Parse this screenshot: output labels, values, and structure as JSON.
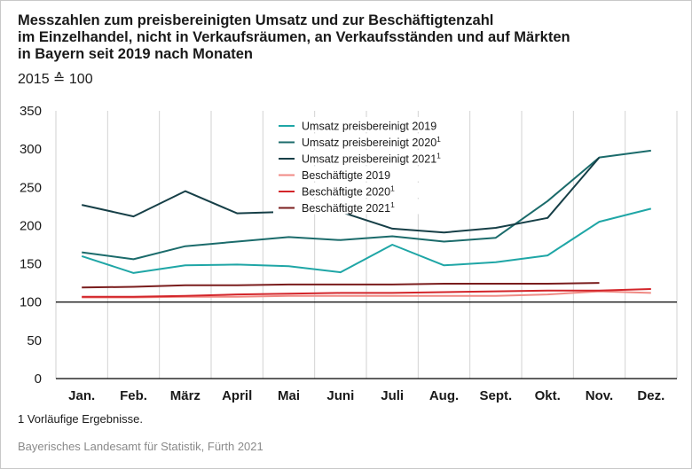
{
  "title_lines": [
    "Messzahlen zum preisbereinigten Umsatz und zur Beschäftigtenzahl",
    "im Einzelhandel, nicht in Verkaufsräumen, an Verkaufsständen und auf Märkten",
    "in Bayern seit 2019 nach Monaten"
  ],
  "subtitle": "2015 ≙ 100",
  "footnote": "1  Vorläufige Ergebnisse.",
  "source": "Bayerisches Landesamt für Statistik, Fürth 2021",
  "chart_data": {
    "type": "line",
    "categories": [
      "Jan.",
      "Feb.",
      "März",
      "April",
      "Mai",
      "Juni",
      "Juli",
      "Aug.",
      "Sept.",
      "Okt.",
      "Nov.",
      "Dez."
    ],
    "ylim": [
      0,
      350
    ],
    "yticks": [
      0,
      50,
      100,
      150,
      200,
      250,
      300,
      350
    ],
    "grid": "vertical",
    "legend_position": "top-center",
    "series": [
      {
        "name": "Umsatz preisbereinigt 2019",
        "sup": "",
        "color": "#1fa6a6",
        "values": [
          160,
          138,
          148,
          149,
          147,
          139,
          175,
          148,
          152,
          161,
          205,
          222
        ]
      },
      {
        "name": "Umsatz preisbereinigt 2020",
        "sup": "1",
        "color": "#1b6b6b",
        "values": [
          165,
          156,
          173,
          179,
          185,
          181,
          186,
          179,
          184,
          232,
          289,
          298
        ]
      },
      {
        "name": "Umsatz preisbereinigt 2021",
        "sup": "1",
        "color": "#163f47",
        "values": [
          227,
          212,
          245,
          216,
          218,
          218,
          196,
          191,
          197,
          210,
          289,
          null
        ]
      },
      {
        "name": "Beschäftigte 2019",
        "sup": "",
        "color": "#f08a84",
        "values": [
          106,
          106,
          107,
          107,
          108,
          108,
          108,
          108,
          108,
          110,
          114,
          112
        ]
      },
      {
        "name": "Beschäftigte 2020",
        "sup": "1",
        "color": "#d3252a",
        "values": [
          107,
          107,
          108,
          110,
          111,
          112,
          112,
          113,
          114,
          115,
          115,
          117
        ]
      },
      {
        "name": "Beschäftigte 2021",
        "sup": "1",
        "color": "#7a1d1d",
        "values": [
          119,
          120,
          122,
          122,
          123,
          123,
          123,
          124,
          124,
          124,
          125,
          null
        ]
      }
    ]
  }
}
